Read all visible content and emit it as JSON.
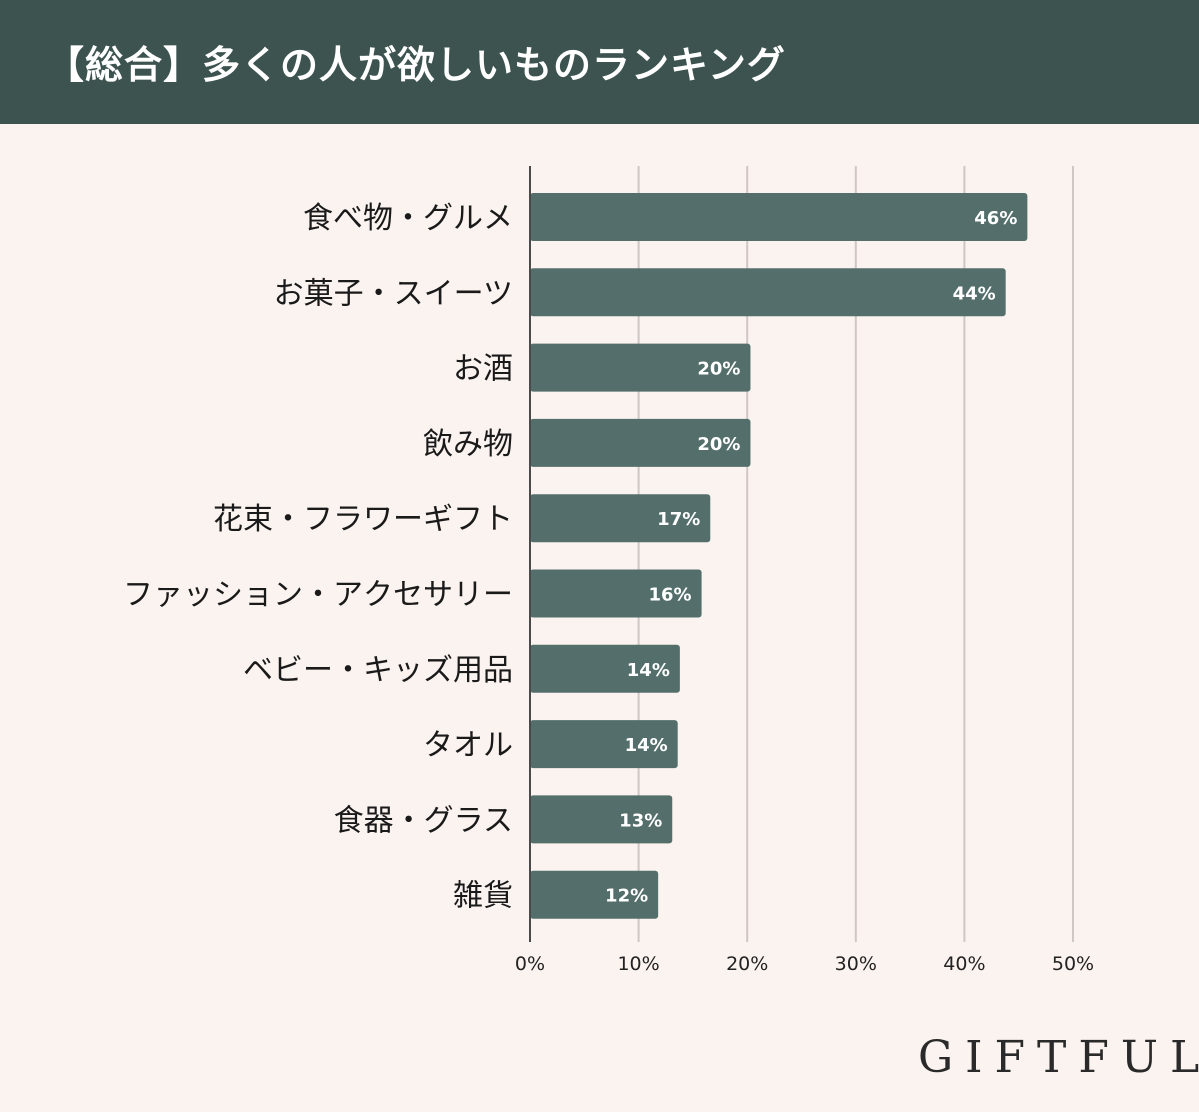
{
  "header": {
    "title": "【総合】多くの人が欲しいものランキング"
  },
  "brand": {
    "logo_text": "GIFTFUL"
  },
  "colors": {
    "header_bg": "#3c534f",
    "page_bg": "#fbf3ef",
    "bar": "#546f6b",
    "gridline": "#cfc6c6",
    "logo_accent": "#e8c9a8"
  },
  "chart_data": {
    "type": "bar",
    "orientation": "horizontal",
    "title": "【総合】多くの人が欲しいものランキング",
    "categories": [
      "食べ物・グルメ",
      "お菓子・スイーツ",
      "お酒",
      "飲み物",
      "花束・フラワーギフト",
      "ファッション・アクセサリー",
      "ベビー・キッズ用品",
      "タオル",
      "食器・グラス",
      "雑貨"
    ],
    "values": [
      45.8,
      43.8,
      20.3,
      20.3,
      16.6,
      15.8,
      13.8,
      13.6,
      13.1,
      11.8
    ],
    "value_labels": [
      "46%",
      "44%",
      "20%",
      "20%",
      "17%",
      "16%",
      "14%",
      "14%",
      "13%",
      "12%"
    ],
    "xlim": [
      0,
      50
    ],
    "ticks": [
      0,
      10,
      20,
      30,
      40,
      50
    ],
    "tick_labels": [
      "0%",
      "10%",
      "20%",
      "30%",
      "40%",
      "50%"
    ],
    "grid": true,
    "legend": "none"
  }
}
